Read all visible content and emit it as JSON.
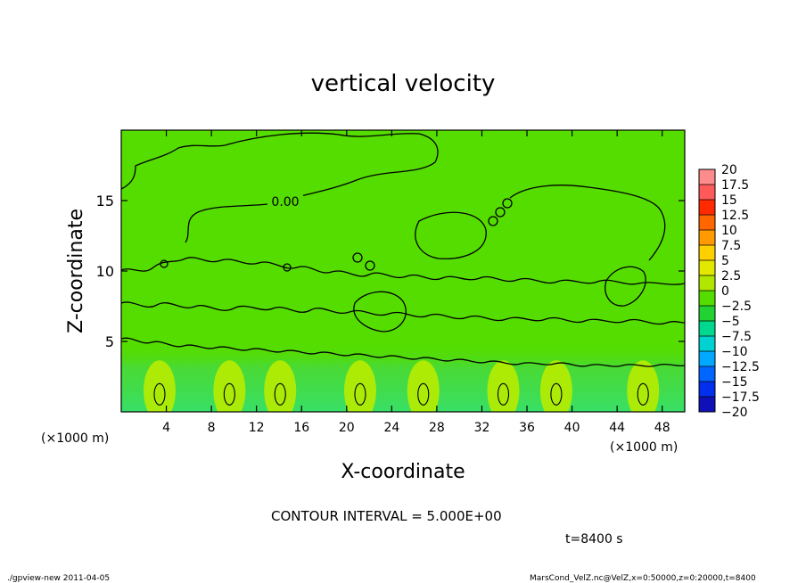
{
  "chart_data": {
    "type": "heatmap",
    "title": "vertical velocity",
    "xlabel": "X-coordinate",
    "ylabel": "Z-coordinate",
    "x_unit_left": "(×1000 m)",
    "x_unit_right": "(×1000 m)",
    "xlim": [
      0,
      50
    ],
    "ylim": [
      0,
      20
    ],
    "x_ticks": [
      4,
      8,
      12,
      16,
      20,
      24,
      28,
      32,
      36,
      40,
      44,
      48
    ],
    "y_ticks": [
      5,
      10,
      15
    ],
    "contour_label": "0.00",
    "contour_interval": "CONTOUR INTERVAL = 5.000E+00",
    "time": "t=8400 s",
    "updraft_centers_x": [
      3.4,
      9.6,
      14.1,
      21.2,
      26.8,
      33.9,
      38.6,
      46.3
    ],
    "colorbar": {
      "levels": [
        "20",
        "17.5",
        "15",
        "12.5",
        "10",
        "7.5",
        "5",
        "2.5",
        "0",
        "−2.5",
        "−5",
        "−7.5",
        "−10",
        "−12.5",
        "−15",
        "−17.5",
        "−20"
      ],
      "colors": [
        "#ff8c8c",
        "#ff5a5a",
        "#ff2a00",
        "#ff6600",
        "#ff9a00",
        "#ffd000",
        "#e2e800",
        "#b0e600",
        "#55dd00",
        "#22d232",
        "#00d890",
        "#00d2d2",
        "#00a8ff",
        "#0066ff",
        "#0030ee",
        "#1010b8",
        "#6010c0"
      ]
    }
  },
  "footer": {
    "left": "./gpview-new   2011-04-05",
    "right": "MarsCond_VelZ.nc@VelZ,x=0:50000,z=0:20000,t=8400"
  },
  "colors": {
    "field_green": "#55dd00",
    "updraft_yellow": "#b8ec00",
    "downdraft_cyan": "#22d87a"
  }
}
